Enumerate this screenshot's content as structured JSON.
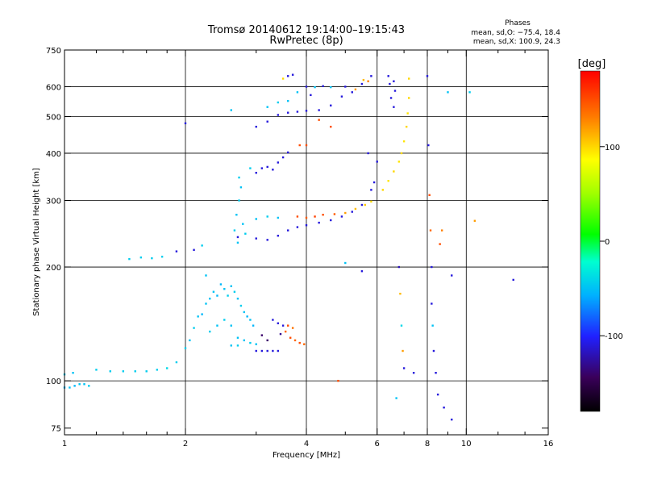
{
  "chart_data": {
    "type": "scatter",
    "title": "Tromsø 20140612 19:14:00–19:15:43",
    "subtitle": "RwPretec (8p)",
    "xlabel": "Frequency [MHz]",
    "ylabel": "Stationary phase Virtual Height [km]",
    "x_scale": "log",
    "y_scale": "log",
    "xlim": [
      1,
      16
    ],
    "ylim": [
      72,
      750
    ],
    "x_ticks": [
      1,
      2,
      4,
      6,
      8,
      10,
      16
    ],
    "x_tick_labels": [
      "1",
      "2",
      "4",
      "6",
      "8",
      "10",
      "16"
    ],
    "x_minor_ticks": [
      1.2,
      1.4,
      1.6,
      1.8,
      3,
      5,
      7,
      9,
      12,
      14
    ],
    "y_ticks": [
      75,
      100,
      200,
      300,
      400,
      500,
      600,
      750
    ],
    "y_tick_labels": [
      "75",
      "100",
      "200",
      "300",
      "400",
      "500",
      "600",
      "750"
    ],
    "x_grid": [
      2,
      4,
      6,
      8,
      10
    ],
    "y_grid": [
      100,
      200,
      300,
      400,
      500,
      600
    ],
    "legend": {
      "title": "Phases",
      "lines": [
        "mean, sd,O: −75.4, 18.4",
        "mean, sd,X: 100.9, 24.3"
      ],
      "position": "top-right"
    },
    "colorbar": {
      "label": "[deg]",
      "range": [
        -180,
        180
      ],
      "ticks": [
        100,
        0,
        -100
      ],
      "tick_labels": [
        "100",
        "0",
        "-100"
      ]
    },
    "series": [
      {
        "values": [
          {
            "x": 1.0,
            "y": 96,
            "c": -55
          },
          {
            "x": 1.03,
            "y": 96,
            "c": -50
          },
          {
            "x": 1.06,
            "y": 97,
            "c": -55
          },
          {
            "x": 1.09,
            "y": 98,
            "c": -48
          },
          {
            "x": 1.12,
            "y": 98,
            "c": -50
          },
          {
            "x": 1.15,
            "y": 97,
            "c": -45
          },
          {
            "x": 1.0,
            "y": 104,
            "c": -45
          },
          {
            "x": 1.05,
            "y": 105,
            "c": -50
          },
          {
            "x": 1.2,
            "y": 107,
            "c": -45
          },
          {
            "x": 1.3,
            "y": 106,
            "c": -45
          },
          {
            "x": 1.4,
            "y": 106,
            "c": -45
          },
          {
            "x": 1.5,
            "y": 106,
            "c": -45
          },
          {
            "x": 1.6,
            "y": 106,
            "c": -45
          },
          {
            "x": 1.7,
            "y": 107,
            "c": -45
          },
          {
            "x": 1.8,
            "y": 108,
            "c": -40
          },
          {
            "x": 1.9,
            "y": 112,
            "c": -45
          },
          {
            "x": 2.0,
            "y": 122,
            "c": -45
          },
          {
            "x": 2.05,
            "y": 128,
            "c": -50
          },
          {
            "x": 2.1,
            "y": 138,
            "c": -45
          },
          {
            "x": 2.15,
            "y": 148,
            "c": -50
          },
          {
            "x": 2.2,
            "y": 150,
            "c": -55
          },
          {
            "x": 2.25,
            "y": 160,
            "c": -50
          },
          {
            "x": 2.3,
            "y": 165,
            "c": -50
          },
          {
            "x": 2.35,
            "y": 172,
            "c": -50
          },
          {
            "x": 2.4,
            "y": 168,
            "c": -55
          },
          {
            "x": 2.45,
            "y": 180,
            "c": -55
          },
          {
            "x": 2.5,
            "y": 175,
            "c": -50
          },
          {
            "x": 2.55,
            "y": 168,
            "c": -45
          },
          {
            "x": 2.6,
            "y": 178,
            "c": -50
          },
          {
            "x": 2.65,
            "y": 172,
            "c": -45
          },
          {
            "x": 2.7,
            "y": 165,
            "c": -50
          },
          {
            "x": 2.75,
            "y": 158,
            "c": -45
          },
          {
            "x": 2.8,
            "y": 152,
            "c": -50
          },
          {
            "x": 2.85,
            "y": 148,
            "c": -55
          },
          {
            "x": 2.9,
            "y": 145,
            "c": -50
          },
          {
            "x": 2.95,
            "y": 140,
            "c": -55
          },
          {
            "x": 2.3,
            "y": 135,
            "c": -45
          },
          {
            "x": 2.4,
            "y": 140,
            "c": -50
          },
          {
            "x": 2.5,
            "y": 145,
            "c": -45
          },
          {
            "x": 2.6,
            "y": 140,
            "c": -50
          },
          {
            "x": 2.7,
            "y": 130,
            "c": -50
          },
          {
            "x": 2.8,
            "y": 128,
            "c": -50
          },
          {
            "x": 2.9,
            "y": 126,
            "c": -45
          },
          {
            "x": 3.0,
            "y": 125,
            "c": -50
          },
          {
            "x": 2.6,
            "y": 124,
            "c": -50
          },
          {
            "x": 2.7,
            "y": 124,
            "c": -45
          },
          {
            "x": 3.1,
            "y": 132,
            "c": -140
          },
          {
            "x": 3.2,
            "y": 128,
            "c": -140
          },
          {
            "x": 3.0,
            "y": 120,
            "c": -110
          },
          {
            "x": 3.1,
            "y": 120,
            "c": -110
          },
          {
            "x": 3.2,
            "y": 120,
            "c": -110
          },
          {
            "x": 3.3,
            "y": 120,
            "c": -110
          },
          {
            "x": 3.4,
            "y": 120,
            "c": -110
          },
          {
            "x": 3.4,
            "y": 142,
            "c": -110
          },
          {
            "x": 3.5,
            "y": 140,
            "c": -110
          },
          {
            "x": 3.3,
            "y": 145,
            "c": -110
          },
          {
            "x": 3.45,
            "y": 133,
            "c": -130
          },
          {
            "x": 3.55,
            "y": 135,
            "c": 140
          },
          {
            "x": 3.65,
            "y": 130,
            "c": 150
          },
          {
            "x": 3.75,
            "y": 128,
            "c": 140
          },
          {
            "x": 3.85,
            "y": 126,
            "c": 150
          },
          {
            "x": 3.95,
            "y": 125,
            "c": 140
          },
          {
            "x": 3.7,
            "y": 138,
            "c": 135
          },
          {
            "x": 3.6,
            "y": 140,
            "c": 150
          },
          {
            "x": 1.45,
            "y": 210,
            "c": -45
          },
          {
            "x": 1.55,
            "y": 212,
            "c": -45
          },
          {
            "x": 1.65,
            "y": 211,
            "c": -45
          },
          {
            "x": 1.75,
            "y": 213,
            "c": -45
          },
          {
            "x": 1.9,
            "y": 220,
            "c": -110
          },
          {
            "x": 2.1,
            "y": 222,
            "c": -110
          },
          {
            "x": 2.2,
            "y": 228,
            "c": -45
          },
          {
            "x": 3.0,
            "y": 238,
            "c": -110
          },
          {
            "x": 3.2,
            "y": 236,
            "c": -110
          },
          {
            "x": 3.4,
            "y": 242,
            "c": -110
          },
          {
            "x": 3.6,
            "y": 250,
            "c": -110
          },
          {
            "x": 3.8,
            "y": 255,
            "c": -110
          },
          {
            "x": 4.0,
            "y": 258,
            "c": -110
          },
          {
            "x": 4.3,
            "y": 262,
            "c": -110
          },
          {
            "x": 4.6,
            "y": 266,
            "c": -110
          },
          {
            "x": 4.9,
            "y": 272,
            "c": -110
          },
          {
            "x": 5.2,
            "y": 280,
            "c": -110
          },
          {
            "x": 5.5,
            "y": 292,
            "c": -110
          },
          {
            "x": 5.8,
            "y": 320,
            "c": -110
          },
          {
            "x": 5.9,
            "y": 335,
            "c": -110
          },
          {
            "x": 3.8,
            "y": 272,
            "c": 150
          },
          {
            "x": 4.0,
            "y": 270,
            "c": 145
          },
          {
            "x": 4.2,
            "y": 272,
            "c": 155
          },
          {
            "x": 4.4,
            "y": 275,
            "c": 150
          },
          {
            "x": 4.7,
            "y": 276,
            "c": 145
          },
          {
            "x": 5.0,
            "y": 278,
            "c": 120
          },
          {
            "x": 5.3,
            "y": 285,
            "c": 110
          },
          {
            "x": 5.6,
            "y": 292,
            "c": 105
          },
          {
            "x": 5.8,
            "y": 298,
            "c": 100
          },
          {
            "x": 3.0,
            "y": 268,
            "c": -50
          },
          {
            "x": 3.2,
            "y": 272,
            "c": -45
          },
          {
            "x": 3.4,
            "y": 270,
            "c": -50
          },
          {
            "x": 2.7,
            "y": 240,
            "c": -110
          },
          {
            "x": 2.65,
            "y": 250,
            "c": -45
          },
          {
            "x": 2.68,
            "y": 275,
            "c": -50
          },
          {
            "x": 2.72,
            "y": 300,
            "c": -45
          },
          {
            "x": 2.75,
            "y": 325,
            "c": -50
          },
          {
            "x": 2.72,
            "y": 345,
            "c": -45
          },
          {
            "x": 2.78,
            "y": 260,
            "c": -50
          },
          {
            "x": 2.82,
            "y": 245,
            "c": -45
          },
          {
            "x": 2.7,
            "y": 232,
            "c": -50
          },
          {
            "x": 3.0,
            "y": 355,
            "c": -110
          },
          {
            "x": 3.1,
            "y": 365,
            "c": -110
          },
          {
            "x": 3.2,
            "y": 368,
            "c": -110
          },
          {
            "x": 3.3,
            "y": 362,
            "c": -110
          },
          {
            "x": 3.4,
            "y": 378,
            "c": -110
          },
          {
            "x": 3.5,
            "y": 390,
            "c": -110
          },
          {
            "x": 3.6,
            "y": 402,
            "c": -110
          },
          {
            "x": 3.85,
            "y": 420,
            "c": 150
          },
          {
            "x": 4.0,
            "y": 420,
            "c": 150
          },
          {
            "x": 2.9,
            "y": 365,
            "c": -45
          },
          {
            "x": 3.0,
            "y": 470,
            "c": -110
          },
          {
            "x": 3.2,
            "y": 485,
            "c": -110
          },
          {
            "x": 3.4,
            "y": 505,
            "c": -110
          },
          {
            "x": 3.6,
            "y": 512,
            "c": -110
          },
          {
            "x": 3.8,
            "y": 515,
            "c": -110
          },
          {
            "x": 4.0,
            "y": 518,
            "c": -110
          },
          {
            "x": 4.3,
            "y": 520,
            "c": -110
          },
          {
            "x": 4.6,
            "y": 535,
            "c": -110
          },
          {
            "x": 4.9,
            "y": 565,
            "c": -110
          },
          {
            "x": 5.2,
            "y": 580,
            "c": -110
          },
          {
            "x": 5.5,
            "y": 610,
            "c": -110
          },
          {
            "x": 5.8,
            "y": 640,
            "c": -110
          },
          {
            "x": 3.2,
            "y": 530,
            "c": -50
          },
          {
            "x": 3.4,
            "y": 545,
            "c": -45
          },
          {
            "x": 3.6,
            "y": 550,
            "c": -50
          },
          {
            "x": 3.5,
            "y": 630,
            "c": 100
          },
          {
            "x": 3.6,
            "y": 640,
            "c": -110
          },
          {
            "x": 3.7,
            "y": 645,
            "c": -110
          },
          {
            "x": 4.0,
            "y": 600,
            "c": -110
          },
          {
            "x": 4.2,
            "y": 598,
            "c": -50
          },
          {
            "x": 4.4,
            "y": 602,
            "c": -110
          },
          {
            "x": 4.6,
            "y": 598,
            "c": -50
          },
          {
            "x": 5.0,
            "y": 600,
            "c": -110
          },
          {
            "x": 5.3,
            "y": 590,
            "c": 120
          },
          {
            "x": 5.55,
            "y": 625,
            "c": 110
          },
          {
            "x": 5.7,
            "y": 620,
            "c": 130
          },
          {
            "x": 6.4,
            "y": 640,
            "c": -110
          },
          {
            "x": 6.45,
            "y": 610,
            "c": -110
          },
          {
            "x": 6.5,
            "y": 560,
            "c": -110
          },
          {
            "x": 6.6,
            "y": 530,
            "c": -110
          },
          {
            "x": 6.6,
            "y": 620,
            "c": -110
          },
          {
            "x": 6.65,
            "y": 585,
            "c": -110
          },
          {
            "x": 6.2,
            "y": 320,
            "c": 100
          },
          {
            "x": 6.4,
            "y": 338,
            "c": 95
          },
          {
            "x": 6.6,
            "y": 358,
            "c": 100
          },
          {
            "x": 6.8,
            "y": 380,
            "c": 95
          },
          {
            "x": 6.9,
            "y": 400,
            "c": 100
          },
          {
            "x": 7.0,
            "y": 430,
            "c": 95
          },
          {
            "x": 7.1,
            "y": 470,
            "c": 100
          },
          {
            "x": 7.15,
            "y": 510,
            "c": 95
          },
          {
            "x": 7.2,
            "y": 560,
            "c": 100
          },
          {
            "x": 7.2,
            "y": 630,
            "c": 100
          },
          {
            "x": 6.8,
            "y": 200,
            "c": -120
          },
          {
            "x": 6.85,
            "y": 170,
            "c": 110
          },
          {
            "x": 6.9,
            "y": 140,
            "c": -40
          },
          {
            "x": 6.95,
            "y": 120,
            "c": 120
          },
          {
            "x": 7.0,
            "y": 108,
            "c": -110
          },
          {
            "x": 6.7,
            "y": 90,
            "c": -50
          },
          {
            "x": 7.4,
            "y": 105,
            "c": -110
          },
          {
            "x": 8.0,
            "y": 640,
            "c": -110
          },
          {
            "x": 8.05,
            "y": 420,
            "c": -110
          },
          {
            "x": 8.1,
            "y": 310,
            "c": 150
          },
          {
            "x": 8.15,
            "y": 250,
            "c": 140
          },
          {
            "x": 8.2,
            "y": 200,
            "c": -110
          },
          {
            "x": 8.2,
            "y": 160,
            "c": -110
          },
          {
            "x": 8.25,
            "y": 140,
            "c": -50
          },
          {
            "x": 8.3,
            "y": 120,
            "c": -110
          },
          {
            "x": 8.4,
            "y": 105,
            "c": -110
          },
          {
            "x": 8.5,
            "y": 92,
            "c": -110
          },
          {
            "x": 8.8,
            "y": 85,
            "c": -110
          },
          {
            "x": 9.2,
            "y": 79,
            "c": -110
          },
          {
            "x": 8.6,
            "y": 230,
            "c": 150
          },
          {
            "x": 8.7,
            "y": 250,
            "c": 130
          },
          {
            "x": 9.0,
            "y": 580,
            "c": -50
          },
          {
            "x": 9.2,
            "y": 190,
            "c": -110
          },
          {
            "x": 10.2,
            "y": 580,
            "c": -45
          },
          {
            "x": 10.5,
            "y": 265,
            "c": 120
          },
          {
            "x": 13.1,
            "y": 185,
            "c": -110
          },
          {
            "x": 4.8,
            "y": 100,
            "c": 150
          },
          {
            "x": 5.5,
            "y": 195,
            "c": -110
          },
          {
            "x": 5.0,
            "y": 205,
            "c": -50
          },
          {
            "x": 4.3,
            "y": 490,
            "c": 150
          },
          {
            "x": 4.6,
            "y": 470,
            "c": 150
          },
          {
            "x": 5.7,
            "y": 400,
            "c": -110
          },
          {
            "x": 6.0,
            "y": 380,
            "c": -110
          },
          {
            "x": 3.8,
            "y": 580,
            "c": -50
          },
          {
            "x": 4.1,
            "y": 570,
            "c": -110
          },
          {
            "x": 2.0,
            "y": 480,
            "c": -110
          },
          {
            "x": 2.25,
            "y": 190,
            "c": -50
          },
          {
            "x": 2.6,
            "y": 520,
            "c": -50
          }
        ]
      }
    ]
  }
}
